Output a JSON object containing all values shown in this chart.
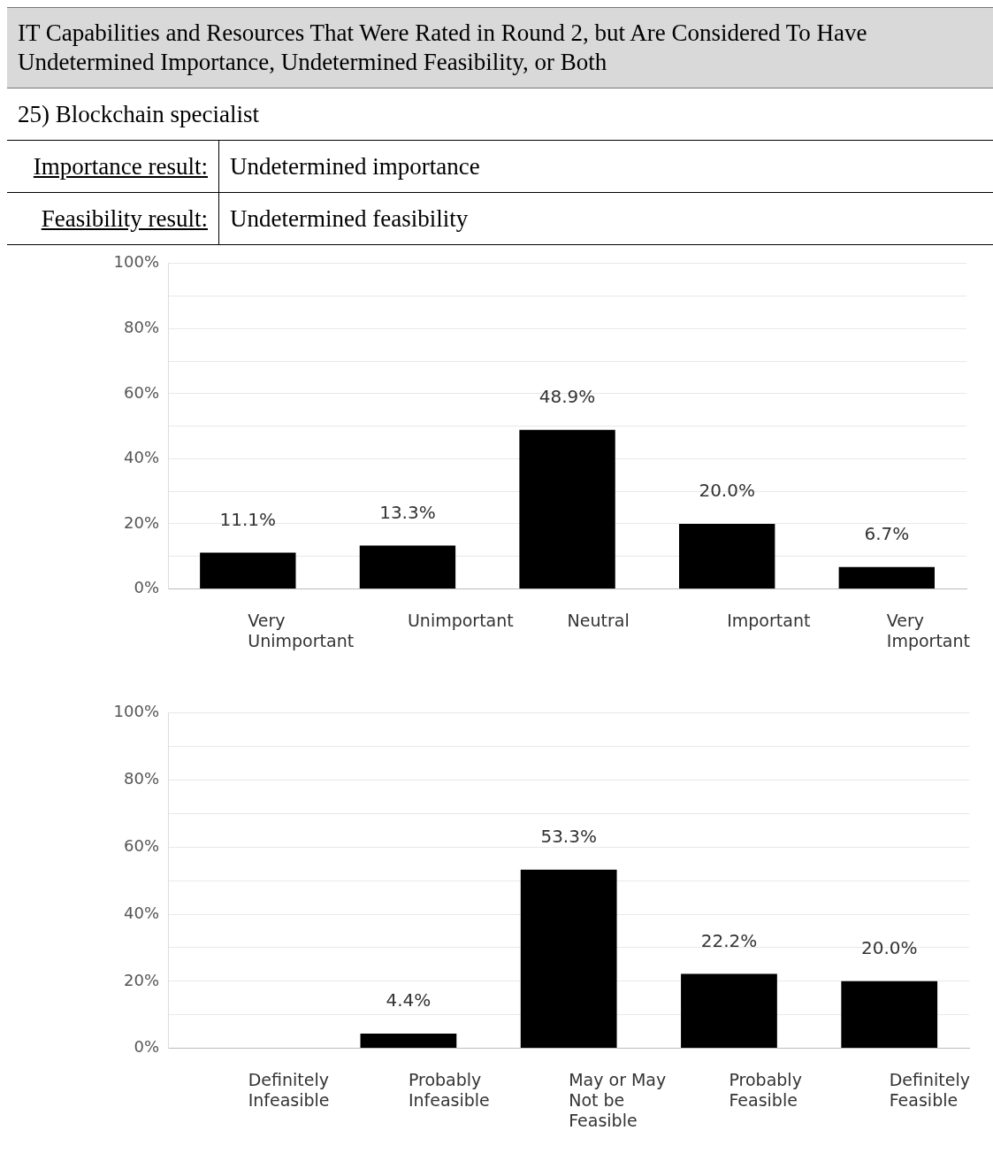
{
  "chart_data": [
    {
      "type": "bar",
      "title": "IT Capabilities and Resources That Were Rated in Round 2, but Are Considered To Have Undetermined Importance, Undetermined Feasibility, or Both",
      "subtitle": "25) Blockchain specialist",
      "annotations": [
        "Importance result:",
        "Undetermined importance",
        "Feasibility result:",
        "Undetermined feasibility"
      ],
      "categories": [
        "Very Unimportant",
        "Unimportant",
        "Neutral",
        "Important",
        "Very Important"
      ],
      "values": [
        11.1,
        13.3,
        48.9,
        20.0,
        6.7
      ],
      "color": "#000000",
      "value_labels": [
        "11.1%",
        "13.3%",
        "48.9%",
        "20.0%",
        "6.7%"
      ],
      "ylim": [
        0,
        100
      ],
      "yticks": [
        {
          "value": 0,
          "label": "0%"
        },
        {
          "value": 10,
          "label": null
        },
        {
          "value": 20,
          "label": "20%"
        },
        {
          "value": 30,
          "label": null
        },
        {
          "value": 40,
          "label": "40%"
        },
        {
          "value": 50,
          "label": null
        },
        {
          "value": 60,
          "label": "60%"
        },
        {
          "value": 70,
          "label": null
        },
        {
          "value": 80,
          "label": "80%"
        },
        {
          "value": 90,
          "label": null
        },
        {
          "value": 100,
          "label": "100%"
        }
      ],
      "grid": "y"
    },
    {
      "type": "bar",
      "categories": [
        "Definitely Infeasible",
        "Probably Infeasible",
        "May or May Not be Feasible",
        "Probably Feasible",
        "Definitely Feasible"
      ],
      "values": [
        0,
        4.4,
        53.3,
        22.2,
        20.0
      ],
      "color": "#000000",
      "value_labels": [
        null,
        "4.4%",
        "53.3%",
        "22.2%",
        "20.0%"
      ],
      "ylim": [
        0,
        100
      ],
      "yticks": [
        {
          "value": 0,
          "label": "0%"
        },
        {
          "value": 10,
          "label": null
        },
        {
          "value": 20,
          "label": "20%"
        },
        {
          "value": 30,
          "label": null
        },
        {
          "value": 40,
          "label": "40%"
        },
        {
          "value": 50,
          "label": null
        },
        {
          "value": 60,
          "label": "60%"
        },
        {
          "value": 70,
          "label": null
        },
        {
          "value": 80,
          "label": "80%"
        },
        {
          "value": 90,
          "label": null
        },
        {
          "value": 100,
          "label": "100%"
        }
      ],
      "grid": "y"
    }
  ]
}
